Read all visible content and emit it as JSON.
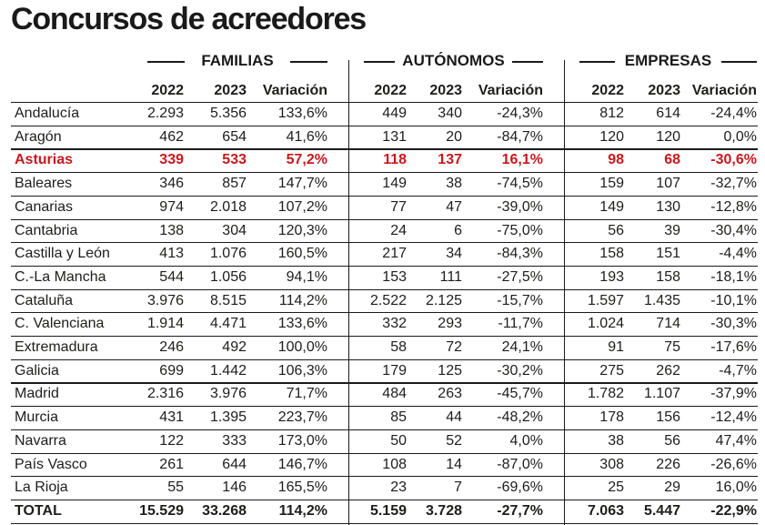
{
  "title": "Concursos de acreedores",
  "chart_data": {
    "type": "table",
    "title": "Concursos de acreedores",
    "groups": [
      "FAMILIAS",
      "AUTÓNOMOS",
      "EMPRESAS"
    ],
    "subheaders": [
      "2022",
      "2023",
      "Variación"
    ],
    "highlight_row": "Asturias",
    "highlight_color": "#c8181e",
    "rows": [
      {
        "region": "Andalucía",
        "familias": [
          "2.293",
          "5.356",
          "133,6%"
        ],
        "autonomos": [
          "449",
          "340",
          "-24,3%"
        ],
        "empresas": [
          "812",
          "614",
          "-24,4%"
        ]
      },
      {
        "region": "Aragón",
        "familias": [
          "462",
          "654",
          "41,6%"
        ],
        "autonomos": [
          "131",
          "20",
          "-84,7%"
        ],
        "empresas": [
          "120",
          "120",
          "0,0%"
        ]
      },
      {
        "region": "Asturias",
        "familias": [
          "339",
          "533",
          "57,2%"
        ],
        "autonomos": [
          "118",
          "137",
          "16,1%"
        ],
        "empresas": [
          "98",
          "68",
          "-30,6%"
        ]
      },
      {
        "region": "Baleares",
        "familias": [
          "346",
          "857",
          "147,7%"
        ],
        "autonomos": [
          "149",
          "38",
          "-74,5%"
        ],
        "empresas": [
          "159",
          "107",
          "-32,7%"
        ]
      },
      {
        "region": "Canarias",
        "familias": [
          "974",
          "2.018",
          "107,2%"
        ],
        "autonomos": [
          "77",
          "47",
          "-39,0%"
        ],
        "empresas": [
          "149",
          "130",
          "-12,8%"
        ]
      },
      {
        "region": "Cantabria",
        "familias": [
          "138",
          "304",
          "120,3%"
        ],
        "autonomos": [
          "24",
          "6",
          "-75,0%"
        ],
        "empresas": [
          "56",
          "39",
          "-30,4%"
        ]
      },
      {
        "region": "Castilla y León",
        "familias": [
          "413",
          "1.076",
          "160,5%"
        ],
        "autonomos": [
          "217",
          "34",
          "-84,3%"
        ],
        "empresas": [
          "158",
          "151",
          "-4,4%"
        ]
      },
      {
        "region": "C.-La Mancha",
        "familias": [
          "544",
          "1.056",
          "94,1%"
        ],
        "autonomos": [
          "153",
          "111",
          "-27,5%"
        ],
        "empresas": [
          "193",
          "158",
          "-18,1%"
        ]
      },
      {
        "region": "Cataluña",
        "familias": [
          "3.976",
          "8.515",
          "114,2%"
        ],
        "autonomos": [
          "2.522",
          "2.125",
          "-15,7%"
        ],
        "empresas": [
          "1.597",
          "1.435",
          "-10,1%"
        ]
      },
      {
        "region": "C. Valenciana",
        "familias": [
          "1.914",
          "4.471",
          "133,6%"
        ],
        "autonomos": [
          "332",
          "293",
          "-11,7%"
        ],
        "empresas": [
          "1.024",
          "714",
          "-30,3%"
        ]
      },
      {
        "region": "Extremadura",
        "familias": [
          "246",
          "492",
          "100,0%"
        ],
        "autonomos": [
          "58",
          "72",
          "24,1%"
        ],
        "empresas": [
          "91",
          "75",
          "-17,6%"
        ]
      },
      {
        "region": "Galicia",
        "familias": [
          "699",
          "1.442",
          "106,3%"
        ],
        "autonomos": [
          "179",
          "125",
          "-30,2%"
        ],
        "empresas": [
          "275",
          "262",
          "-4,7%"
        ]
      },
      {
        "region": "Madrid",
        "familias": [
          "2.316",
          "3.976",
          "71,7%"
        ],
        "autonomos": [
          "484",
          "263",
          "-45,7%"
        ],
        "empresas": [
          "1.782",
          "1.107",
          "-37,9%"
        ]
      },
      {
        "region": "Murcia",
        "familias": [
          "431",
          "1.395",
          "223,7%"
        ],
        "autonomos": [
          "85",
          "44",
          "-48,2%"
        ],
        "empresas": [
          "178",
          "156",
          "-12,4%"
        ]
      },
      {
        "region": "Navarra",
        "familias": [
          "122",
          "333",
          "173,0%"
        ],
        "autonomos": [
          "50",
          "52",
          "4,0%"
        ],
        "empresas": [
          "38",
          "56",
          "47,4%"
        ]
      },
      {
        "region": "País Vasco",
        "familias": [
          "261",
          "644",
          "146,7%"
        ],
        "autonomos": [
          "108",
          "14",
          "-87,0%"
        ],
        "empresas": [
          "308",
          "226",
          "-26,6%"
        ]
      },
      {
        "region": "La Rioja",
        "familias": [
          "55",
          "146",
          "165,5%"
        ],
        "autonomos": [
          "23",
          "7",
          "-69,6%"
        ],
        "empresas": [
          "25",
          "29",
          "16,0%"
        ]
      }
    ],
    "total": {
      "region": "TOTAL",
      "familias": [
        "15.529",
        "33.268",
        "114,2%"
      ],
      "autonomos": [
        "5.159",
        "3.728",
        "-27,7%"
      ],
      "empresas": [
        "7.063",
        "5.447",
        "-22,9%"
      ]
    }
  }
}
